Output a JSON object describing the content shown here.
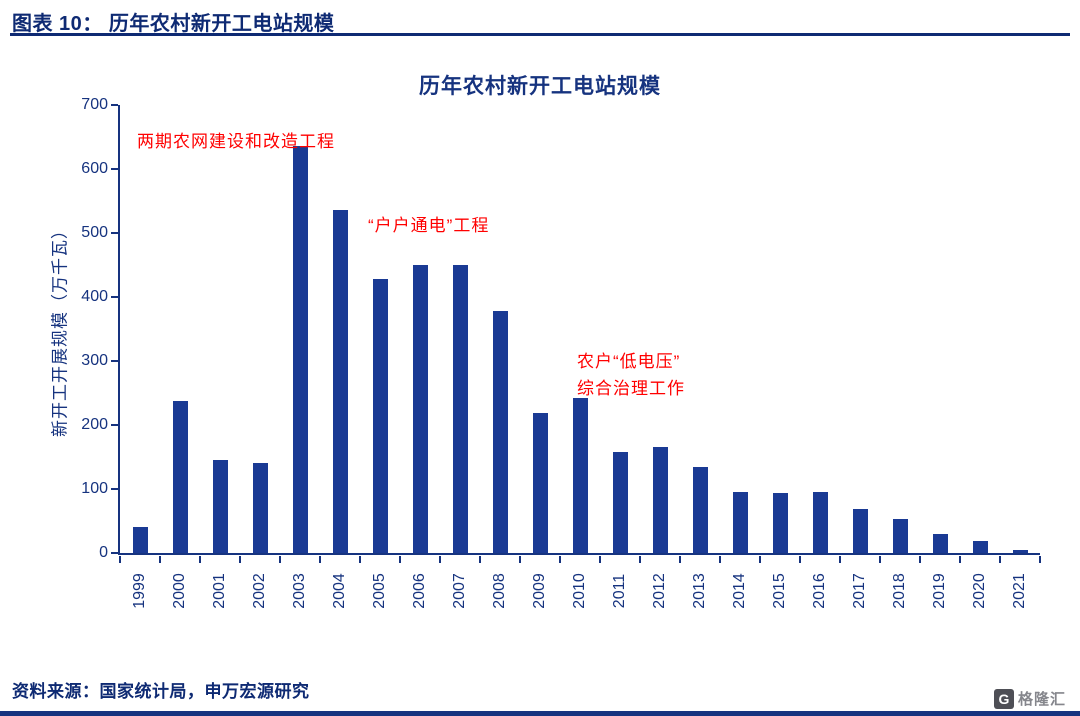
{
  "header": {
    "caption": "图表 10：  历年农村新开工电站规模"
  },
  "chart_data": {
    "type": "bar",
    "title": "历年农村新开工电站规模",
    "xlabel": "",
    "ylabel": "新开工开展规模（万千瓦）",
    "ylim": [
      0,
      700
    ],
    "ytick_step": 100,
    "bar_color": "#1a3a94",
    "legend": "none",
    "grid": "off",
    "categories": [
      "1999",
      "2000",
      "2001",
      "2002",
      "2003",
      "2004",
      "2005",
      "2006",
      "2007",
      "2008",
      "2009",
      "2010",
      "2011",
      "2012",
      "2013",
      "2014",
      "2015",
      "2016",
      "2017",
      "2018",
      "2019",
      "2020",
      "2021"
    ],
    "values": [
      40,
      238,
      145,
      141,
      636,
      536,
      428,
      450,
      450,
      378,
      218,
      242,
      158,
      165,
      135,
      95,
      93,
      95,
      68,
      53,
      30,
      18,
      5
    ]
  },
  "annotations": [
    {
      "text": "两期农网建设和改造工程"
    },
    {
      "text": "“户户通电”工程"
    },
    {
      "lines": [
        "农户“低电压”",
        "综合治理工作"
      ]
    }
  ],
  "footer": {
    "source": "资料来源：国家统计局，申万宏源研究"
  },
  "logo": {
    "mark": "G",
    "text": "格隆汇"
  },
  "colors": {
    "navy": "#0e2a73",
    "bar": "#1a3a94",
    "annotation_red": "#ff0000"
  }
}
